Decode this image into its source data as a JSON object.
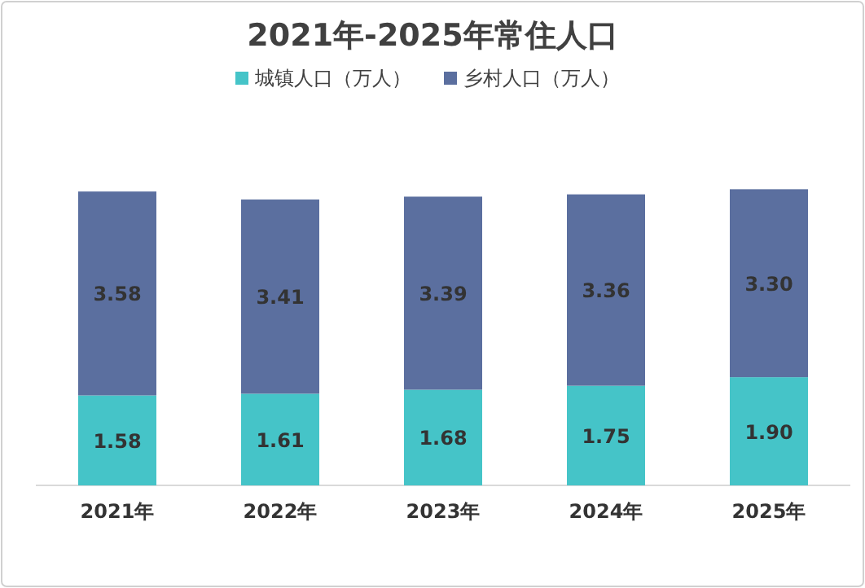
{
  "chart_data": {
    "type": "bar",
    "stacked": true,
    "title": "2021年-2025年常住人口",
    "categories": [
      "2021年",
      "2022年",
      "2023年",
      "2024年",
      "2025年"
    ],
    "series": [
      {
        "name": "城镇人口（万人）",
        "color": "#45c4c8",
        "values": [
          1.58,
          1.61,
          1.68,
          1.75,
          1.9
        ],
        "value_labels": [
          "1.58",
          "1.61",
          "1.68",
          "1.75",
          "1.90"
        ]
      },
      {
        "name": "乡村人口（万人）",
        "color": "#5b6f9f",
        "values": [
          3.58,
          3.41,
          3.39,
          3.36,
          3.3
        ],
        "value_labels": [
          "3.58",
          "3.41",
          "3.39",
          "3.36",
          "3.30"
        ]
      }
    ],
    "legend": "top",
    "grid": false
  }
}
